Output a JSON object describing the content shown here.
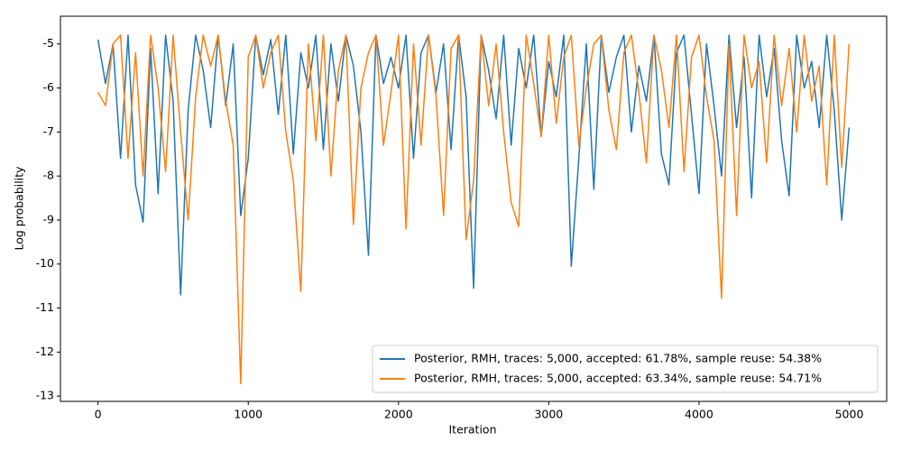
{
  "chart_data": {
    "type": "line",
    "xlabel": "Iteration",
    "ylabel": "Log probability",
    "x": [
      0,
      50,
      100,
      150,
      200,
      250,
      300,
      350,
      400,
      450,
      500,
      550,
      600,
      650,
      700,
      750,
      800,
      850,
      900,
      950,
      1000,
      1050,
      1100,
      1150,
      1200,
      1250,
      1300,
      1350,
      1400,
      1450,
      1500,
      1550,
      1600,
      1650,
      1700,
      1750,
      1800,
      1850,
      1900,
      1950,
      2000,
      2050,
      2100,
      2150,
      2200,
      2250,
      2300,
      2350,
      2400,
      2450,
      2500,
      2550,
      2600,
      2650,
      2700,
      2750,
      2800,
      2850,
      2900,
      2950,
      3000,
      3050,
      3100,
      3150,
      3200,
      3250,
      3300,
      3350,
      3400,
      3450,
      3500,
      3550,
      3600,
      3650,
      3700,
      3750,
      3800,
      3850,
      3900,
      3950,
      4000,
      4050,
      4100,
      4150,
      4200,
      4250,
      4300,
      4350,
      4400,
      4450,
      4500,
      4550,
      4600,
      4650,
      4700,
      4750,
      4800,
      4850,
      4900,
      4950,
      4999
    ],
    "series": [
      {
        "name": "Posterior, RMH, traces: 5,000, accepted: 61.78%, sample reuse: 54.38%",
        "color": "#1f77b4",
        "values": [
          -4.9,
          -5.9,
          -5.0,
          -7.6,
          -4.8,
          -8.2,
          -9.05,
          -5.1,
          -8.4,
          -4.8,
          -6.3,
          -10.7,
          -6.5,
          -4.8,
          -5.6,
          -6.9,
          -4.8,
          -6.4,
          -5.0,
          -8.9,
          -7.6,
          -4.8,
          -5.7,
          -4.9,
          -6.6,
          -4.8,
          -7.5,
          -5.2,
          -6.0,
          -4.8,
          -7.4,
          -5.0,
          -6.3,
          -4.8,
          -5.5,
          -7.0,
          -9.8,
          -4.8,
          -5.9,
          -5.3,
          -6.0,
          -4.8,
          -7.6,
          -5.2,
          -4.8,
          -6.1,
          -5.0,
          -7.4,
          -4.8,
          -6.2,
          -10.55,
          -4.8,
          -5.6,
          -6.7,
          -4.8,
          -7.3,
          -5.1,
          -6.0,
          -4.8,
          -7.1,
          -5.4,
          -6.2,
          -4.8,
          -10.05,
          -7.6,
          -5.0,
          -8.3,
          -4.8,
          -6.1,
          -5.3,
          -4.8,
          -7.0,
          -5.5,
          -6.3,
          -4.8,
          -7.5,
          -8.2,
          -5.2,
          -4.8,
          -6.6,
          -8.4,
          -5.0,
          -6.4,
          -8.0,
          -4.8,
          -6.9,
          -5.3,
          -8.5,
          -4.8,
          -6.2,
          -5.1,
          -7.2,
          -8.45,
          -4.8,
          -6.0,
          -5.4,
          -6.9,
          -4.8,
          -6.5,
          -9.0,
          -6.9
        ]
      },
      {
        "name": "Posterior, RMH, traces: 5,000, accepted: 63.34%, sample reuse: 54.71%",
        "color": "#ff7f0e",
        "values": [
          -6.1,
          -6.4,
          -5.0,
          -4.8,
          -7.6,
          -5.2,
          -8.0,
          -4.8,
          -6.0,
          -7.9,
          -4.8,
          -7.0,
          -9.0,
          -6.2,
          -4.8,
          -5.5,
          -4.8,
          -6.3,
          -7.3,
          -12.72,
          -5.3,
          -4.8,
          -6.0,
          -5.2,
          -4.8,
          -7.0,
          -8.1,
          -10.62,
          -5.0,
          -7.2,
          -4.8,
          -8.0,
          -5.6,
          -4.8,
          -9.1,
          -6.0,
          -5.2,
          -4.8,
          -7.3,
          -6.1,
          -4.8,
          -9.2,
          -5.0,
          -7.3,
          -4.8,
          -6.2,
          -8.9,
          -5.1,
          -4.8,
          -9.45,
          -8.1,
          -4.8,
          -6.4,
          -5.0,
          -7.0,
          -8.6,
          -9.15,
          -4.8,
          -5.9,
          -7.1,
          -4.8,
          -6.8,
          -5.3,
          -4.8,
          -7.3,
          -6.0,
          -5.0,
          -4.8,
          -6.5,
          -7.4,
          -5.2,
          -4.8,
          -6.1,
          -7.7,
          -4.8,
          -5.6,
          -6.9,
          -4.8,
          -7.9,
          -5.3,
          -4.8,
          -6.2,
          -7.2,
          -10.78,
          -5.0,
          -8.9,
          -4.8,
          -6.0,
          -5.4,
          -7.7,
          -4.8,
          -6.4,
          -5.1,
          -7.0,
          -4.8,
          -6.3,
          -5.5,
          -8.2,
          -4.8,
          -7.8,
          -5.0
        ]
      }
    ],
    "xlim": [
      -250,
      5249
    ],
    "xticks": [
      0,
      1000,
      2000,
      3000,
      4000,
      5000
    ],
    "ylim": [
      -13.12,
      -4.37
    ],
    "yticks": [
      -13,
      -12,
      -11,
      -10,
      -9,
      -8,
      -7,
      -6,
      -5
    ],
    "legend": "lower right",
    "grid": false
  }
}
